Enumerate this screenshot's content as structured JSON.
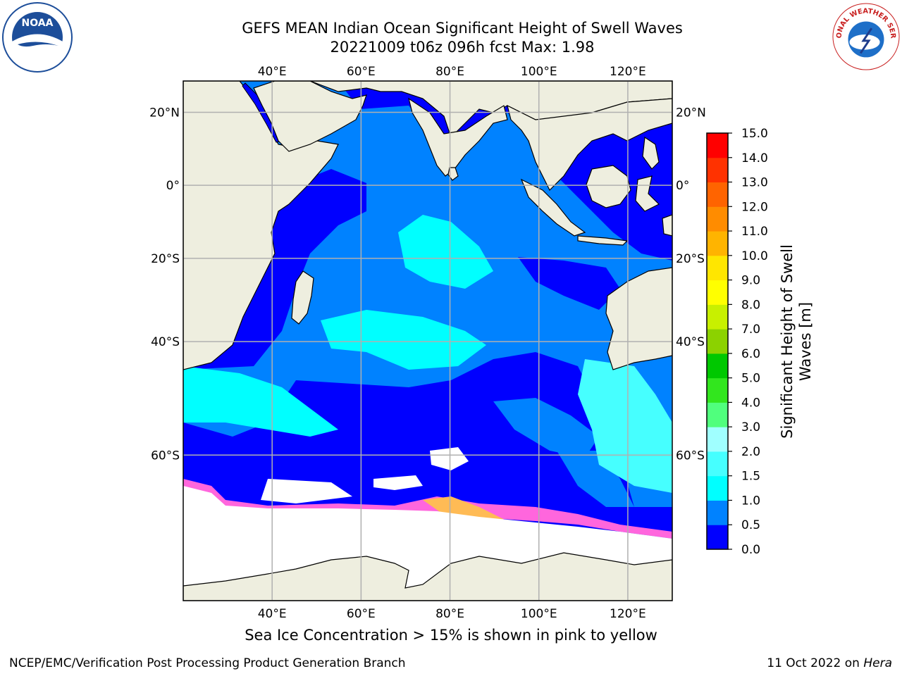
{
  "title": {
    "line1": "GEFS MEAN Indian Ocean Significant Height of Swell Waves",
    "line2": "20221009 t06z 096h fcst   Max: 1.98"
  },
  "map": {
    "lon_ticks": [
      "40°E",
      "60°E",
      "80°E",
      "100°E",
      "120°E"
    ],
    "lon_values": [
      40,
      60,
      80,
      100,
      120
    ],
    "lat_ticks": [
      "20°N",
      "0°",
      "20°S",
      "40°S",
      "60°S"
    ],
    "lat_values": [
      20,
      0,
      -20,
      -40,
      -60
    ],
    "lon_range": [
      20,
      130
    ],
    "lat_range": [
      -75,
      28
    ],
    "grid": true,
    "ocean_color": "#0082ff",
    "land_color": "#eeeedf"
  },
  "colorbar": {
    "label": "Significant Height of Swell Waves [m]",
    "ticks": [
      "0.0",
      "0.5",
      "1.0",
      "1.5",
      "2.0",
      "3.0",
      "4.0",
      "5.0",
      "6.0",
      "7.0",
      "8.0",
      "9.0",
      "10.0",
      "11.0",
      "12.0",
      "13.0",
      "14.0",
      "15.0"
    ],
    "colors": [
      "#0000ff",
      "#0082ff",
      "#00ffff",
      "#46ffff",
      "#a0ffff",
      "#50ff7d",
      "#32e61e",
      "#00c800",
      "#8cd200",
      "#c8f000",
      "#ffff00",
      "#ffe600",
      "#ffb400",
      "#ff8c00",
      "#ff6400",
      "#ff3200",
      "#ff0000"
    ]
  },
  "ice_note": "Sea Ice Concentration > 15% is shown in pink to yellow",
  "footer": {
    "left": "NCEP/EMC/Verification Post Processing Product Generation Branch",
    "right_date": "11 Oct 2022 on ",
    "right_host": "Hera"
  },
  "logos": {
    "noaa": "NOAA",
    "nws": "NATIONAL WEATHER SERVICE"
  }
}
